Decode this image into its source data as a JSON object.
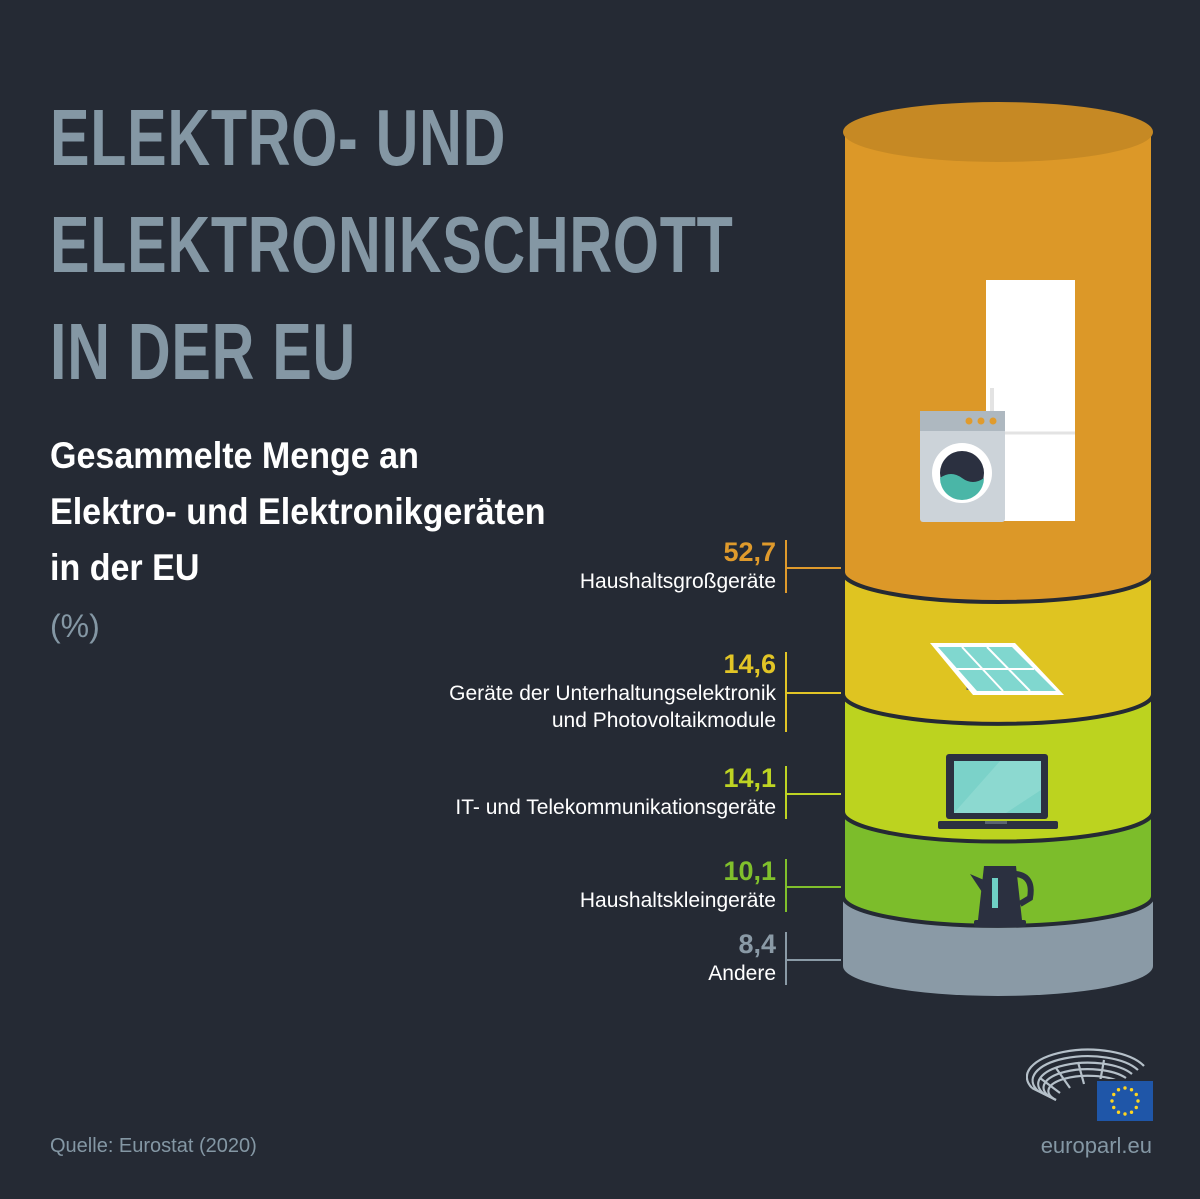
{
  "title_lines": [
    "ELEKTRO- UND",
    "ELEKTRONIKSCHROTT",
    "IN DER EU"
  ],
  "subtitle_lines": [
    "Gesammelte Menge an",
    "Elektro- und Elektronikgeräten",
    "in der EU"
  ],
  "unit": "(%)",
  "chart_data": {
    "type": "stacked-column",
    "unit": "%",
    "segments": [
      {
        "label_lines": [
          "Haushaltsgroßgeräte"
        ],
        "value": 52.7,
        "value_text": "52,7",
        "color": "#dc9828",
        "text_color": "#df9a2c",
        "icon": "washing-machine-refrigerator-icon"
      },
      {
        "label_lines": [
          "Geräte der Unterhaltungselektronik",
          "und Photovoltaikmodule"
        ],
        "value": 14.6,
        "value_text": "14,6",
        "color": "#dfc421",
        "text_color": "#e2c526",
        "icon": "solar-panel-icon"
      },
      {
        "label_lines": [
          "IT- und Telekommunikationsgeräte"
        ],
        "value": 14.1,
        "value_text": "14,1",
        "color": "#bcd31f",
        "text_color": "#bed423",
        "icon": "laptop-icon"
      },
      {
        "label_lines": [
          "Haushaltskleingeräte"
        ],
        "value": 10.1,
        "value_text": "10,1",
        "color": "#7cbd2b",
        "text_color": "#80c02c",
        "icon": "kettle-icon"
      },
      {
        "label_lines": [
          "Andere"
        ],
        "value": 8.4,
        "value_text": "8,4",
        "color": "#8a9aa6",
        "text_color": "#8a9aa6",
        "icon": ""
      }
    ]
  },
  "source": "Quelle: Eurostat (2020)",
  "site": "europarl.eu",
  "logos": {
    "parliament": "european-parliament-hemicycle-logo",
    "eu_flag": "eu-flag-icon"
  }
}
